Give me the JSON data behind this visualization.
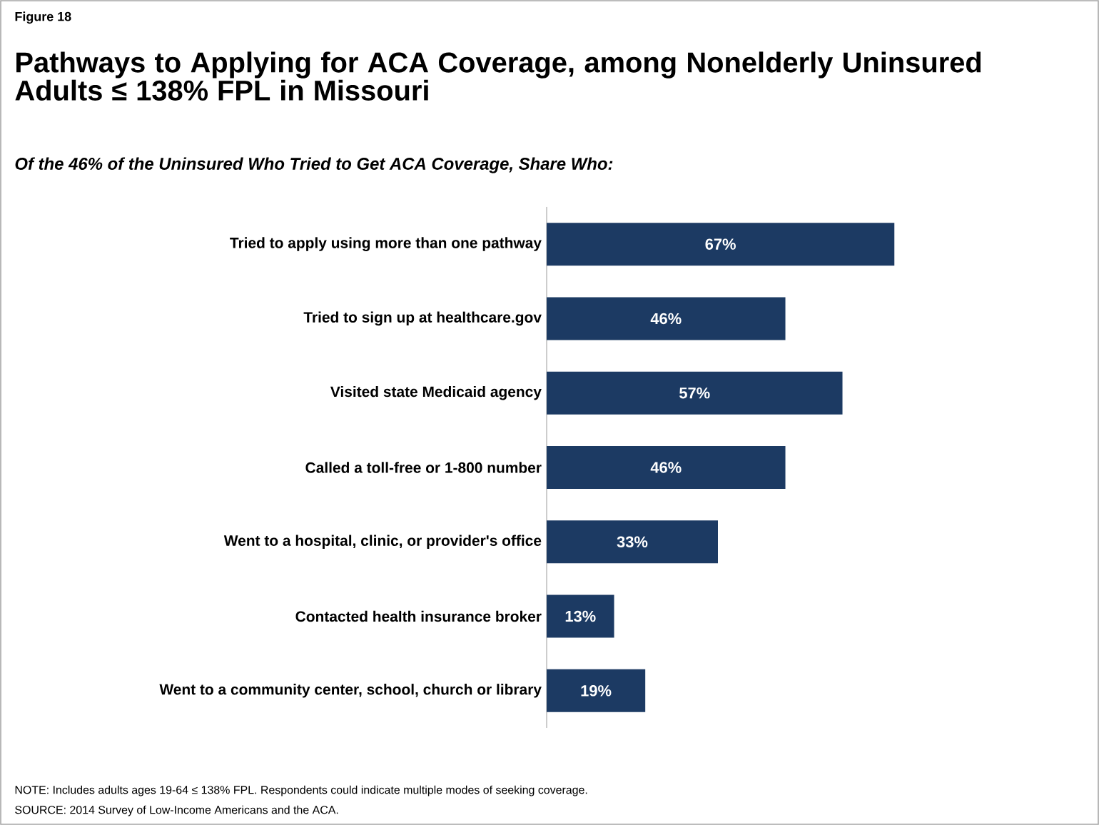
{
  "chart_data": {
    "type": "bar",
    "orientation": "horizontal",
    "title": "Pathways to Applying for ACA Coverage, among Nonelderly Uninsured Adults ≤ 138% FPL in Missouri",
    "subtitle": "Of the 46% of the Uninsured Who Tried to Get ACA Coverage, Share Who:",
    "categories": [
      "Tried to apply using more than one pathway",
      "Tried to sign up at healthcare.gov",
      "Visited state Medicaid agency",
      "Called a toll-free or 1-800 number",
      "Went to a hospital, clinic, or provider's office",
      "Contacted health insurance broker",
      "Went to a community center, school, church or library"
    ],
    "values": [
      67,
      46,
      57,
      46,
      33,
      13,
      19
    ],
    "value_labels": [
      "67%",
      "46%",
      "57%",
      "46%",
      "33%",
      "13%",
      "19%"
    ],
    "color": "#1c3a63",
    "annotations": [
      "Figure 18",
      "NOTE: Includes adults ages 19-64 ≤ 138% FPL. Respondents could indicate multiple modes of seeking coverage.",
      "SOURCE: 2014 Survey of Low-Income Americans and the ACA."
    ]
  }
}
